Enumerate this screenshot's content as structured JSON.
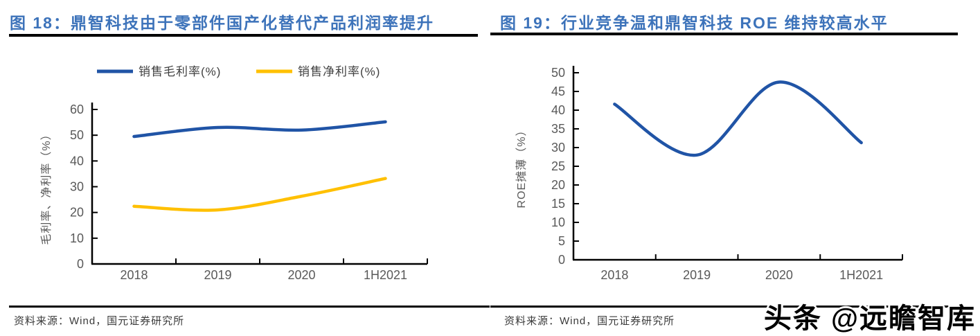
{
  "watermark": "头条 @远瞻智库",
  "colors": {
    "title_blue": "#3D73BA",
    "line_blue": "#2054A6",
    "line_yellow": "#FFC000",
    "axis_text": "#595959",
    "legend_text": "#404040",
    "rule_black": "#000000"
  },
  "panels": [
    {
      "title": "图 18：鼎智科技由于零部件国产化替代产品利润率提升",
      "source": "资料来源：Wind，国元证券研究所"
    },
    {
      "title": "图 19：行业竞争温和鼎智科技 ROE 维持较高水平",
      "source": "资料来源：Wind，国元证券研究所"
    }
  ],
  "chart_data": [
    {
      "type": "line",
      "title": "",
      "categories": [
        "2018",
        "2019",
        "2020",
        "1H2021"
      ],
      "series": [
        {
          "name": "销售毛利率(%)",
          "color": "#2054A6",
          "values": [
            49.5,
            53.0,
            52.0,
            55.2
          ]
        },
        {
          "name": "销售净利率(%)",
          "color": "#FFC000",
          "values": [
            22.4,
            21.0,
            26.3,
            33.2
          ]
        }
      ],
      "xlabel": "",
      "ylabel": "毛利率、净利率（%）",
      "ylim": [
        0,
        60
      ],
      "ytick_step": 10,
      "grid": false,
      "smooth": true,
      "legend_position": "top"
    },
    {
      "type": "line",
      "title": "",
      "categories": [
        "2018",
        "2019",
        "2020",
        "1H2021"
      ],
      "series": [
        {
          "name": "ROE摊薄",
          "color": "#2054A6",
          "values": [
            41.6,
            28.0,
            47.5,
            31.3
          ]
        }
      ],
      "xlabel": "",
      "ylabel": "ROE摊薄（%）",
      "ylim": [
        0,
        50
      ],
      "ytick_step": 5,
      "grid": false,
      "smooth": true,
      "legend_position": "none"
    }
  ]
}
